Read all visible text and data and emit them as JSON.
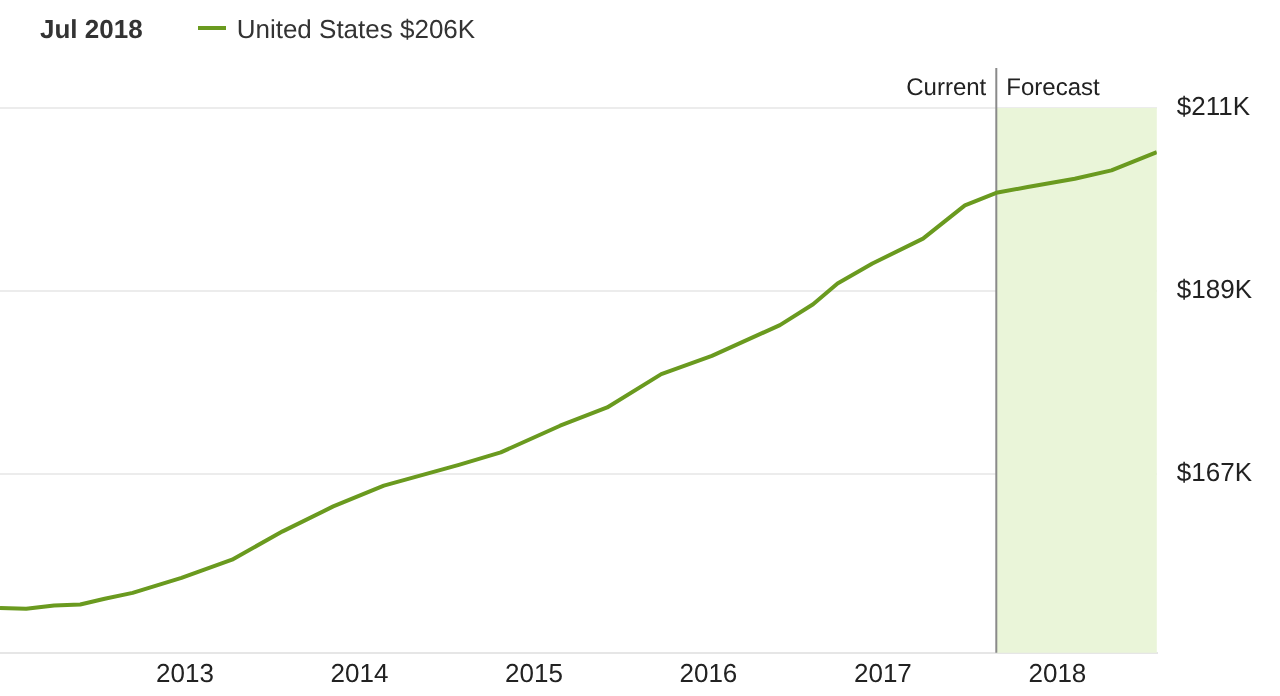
{
  "chart_data": {
    "type": "line",
    "title": "Jul 2018",
    "legend": "top left",
    "grid": "y",
    "marker": "none",
    "line_style": "solid",
    "x": [
      2011.94,
      2012.09,
      2012.25,
      2012.4,
      2012.54,
      2012.7,
      2012.98,
      2013.27,
      2013.56,
      2013.85,
      2014.14,
      2014.57,
      2014.81,
      2015.15,
      2015.42,
      2015.73,
      2016.02,
      2016.41,
      2016.6,
      2016.74,
      2016.94,
      2017.23,
      2017.47,
      2017.65,
      2017.83,
      2018.1,
      2018.31,
      2018.57
    ],
    "series": [
      {
        "name": "United States $206K",
        "color": "#6a9a1f",
        "values": [
          150.9,
          150.8,
          151.2,
          151.3,
          152.0,
          152.7,
          154.5,
          156.7,
          160.1,
          163.1,
          165.6,
          168.1,
          169.6,
          172.8,
          175.0,
          179.0,
          181.2,
          184.9,
          187.4,
          189.9,
          192.3,
          195.3,
          199.3,
          200.8,
          201.5,
          202.5,
          203.5,
          205.7
        ]
      }
    ],
    "xlim": [
      2011.94,
      2018.57
    ],
    "xticks": [
      2013,
      2014,
      2015,
      2016,
      2017,
      2018
    ],
    "ylim": [
      145.5,
      211
    ],
    "yticks": [
      {
        "value": 167,
        "label": "$167K"
      },
      {
        "value": 189,
        "label": "$189K"
      },
      {
        "value": 211,
        "label": "$211K"
      }
    ],
    "ref_lines": [
      {
        "axis": "x",
        "value": 2017.65,
        "label": "Current",
        "color": "#8a8a8a"
      }
    ],
    "bands": [
      {
        "axis": "x",
        "from": 2017.65,
        "to": 2018.57,
        "label": "Forecast",
        "color": "#eaf5d9"
      }
    ]
  }
}
